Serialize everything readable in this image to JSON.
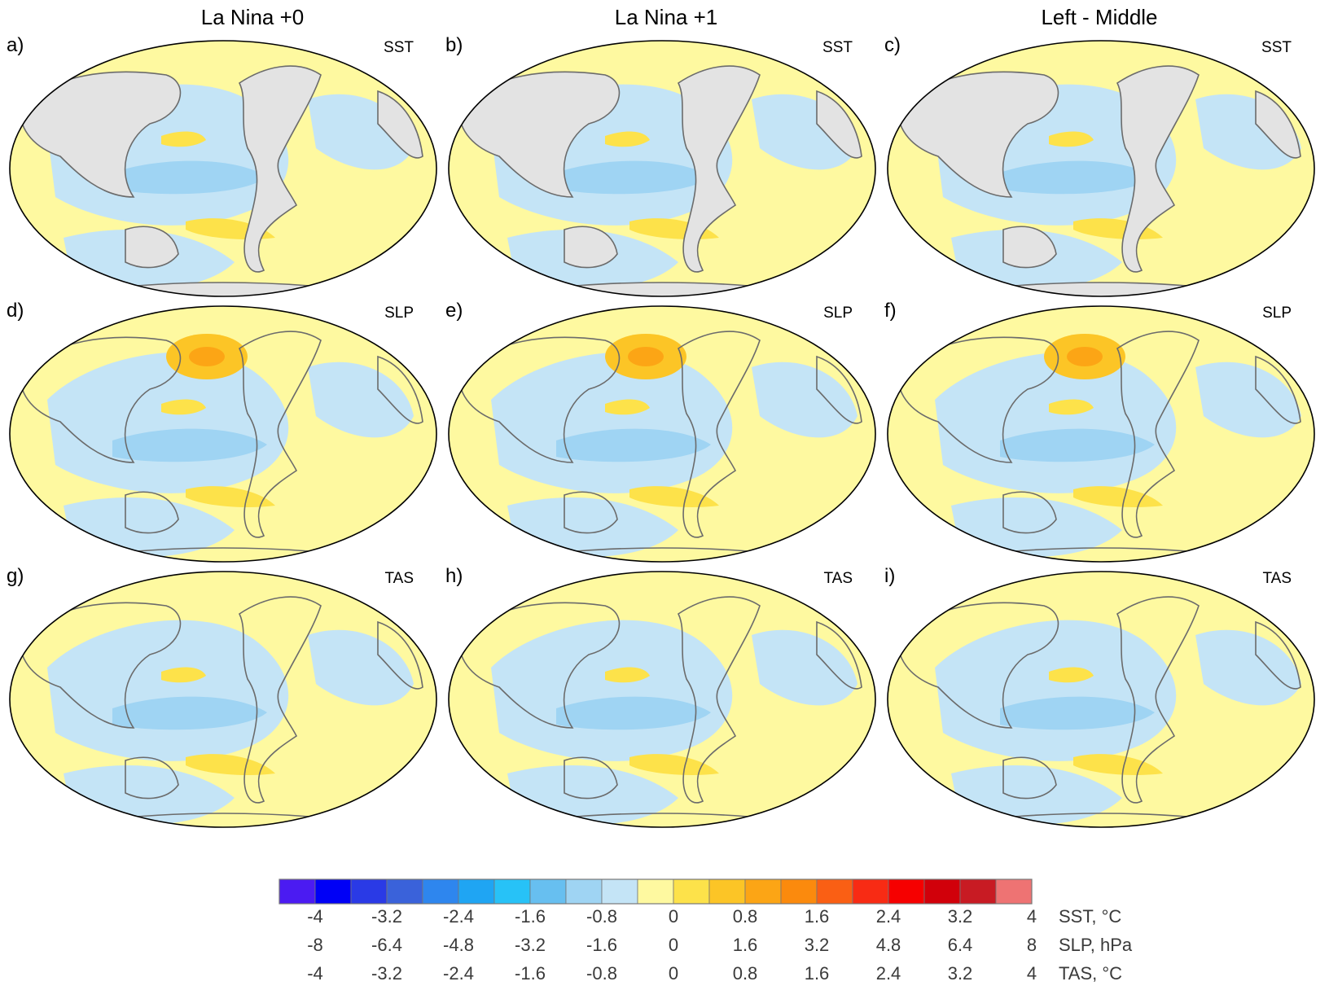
{
  "column_titles": [
    "La Nina +0",
    "La Nina +1",
    "Left - Middle"
  ],
  "panels": [
    {
      "letter": "a)",
      "var": "SST",
      "land": true
    },
    {
      "letter": "b)",
      "var": "SST",
      "land": true
    },
    {
      "letter": "c)",
      "var": "SST",
      "land": true
    },
    {
      "letter": "d)",
      "var": "SLP",
      "land": false
    },
    {
      "letter": "e)",
      "var": "SLP",
      "land": false
    },
    {
      "letter": "f)",
      "var": "SLP",
      "land": false
    },
    {
      "letter": "g)",
      "var": "TAS",
      "land": false
    },
    {
      "letter": "h)",
      "var": "TAS",
      "land": false
    },
    {
      "letter": "i)",
      "var": "TAS",
      "land": false
    }
  ],
  "colorbar": {
    "colors": [
      "#4b1bf2",
      "#0000f6",
      "#2a3ae6",
      "#3a62da",
      "#2e86ee",
      "#1fa5f3",
      "#27c2f7",
      "#67bff0",
      "#9fd4f3",
      "#c4e4f6",
      "#fef9a0",
      "#fde24a",
      "#fcc526",
      "#fca515",
      "#fb8a0d",
      "#fa5f14",
      "#f82b14",
      "#f60000",
      "#d1000a",
      "#c81b23",
      "#ee7373"
    ],
    "rows": [
      {
        "label": "SST, °C",
        "ticks": [
          "-4",
          "-3.2",
          "-2.4",
          "-1.6",
          "-0.8",
          "0",
          "0.8",
          "1.6",
          "2.4",
          "3.2",
          "4"
        ]
      },
      {
        "label": "SLP, hPa",
        "ticks": [
          "-8",
          "-6.4",
          "-4.8",
          "-3.2",
          "-1.6",
          "0",
          "1.6",
          "3.2",
          "4.8",
          "6.4",
          "8"
        ]
      },
      {
        "label": "TAS, °C",
        "ticks": [
          "-4",
          "-3.2",
          "-2.4",
          "-1.6",
          "-0.8",
          "0",
          "0.8",
          "1.6",
          "2.4",
          "3.2",
          "4"
        ]
      }
    ]
  },
  "palette": {
    "ocean_neg": "#c4e4f6",
    "neg2": "#9fd4f3",
    "neg3": "#67bff0",
    "neg4": "#27c2f7",
    "ocean_pos": "#fef9a0",
    "pos2": "#fde24a",
    "pos3": "#fcc526",
    "pos4": "#fca515",
    "land": "#e3e3e3",
    "coast": "#6b6b6b"
  }
}
